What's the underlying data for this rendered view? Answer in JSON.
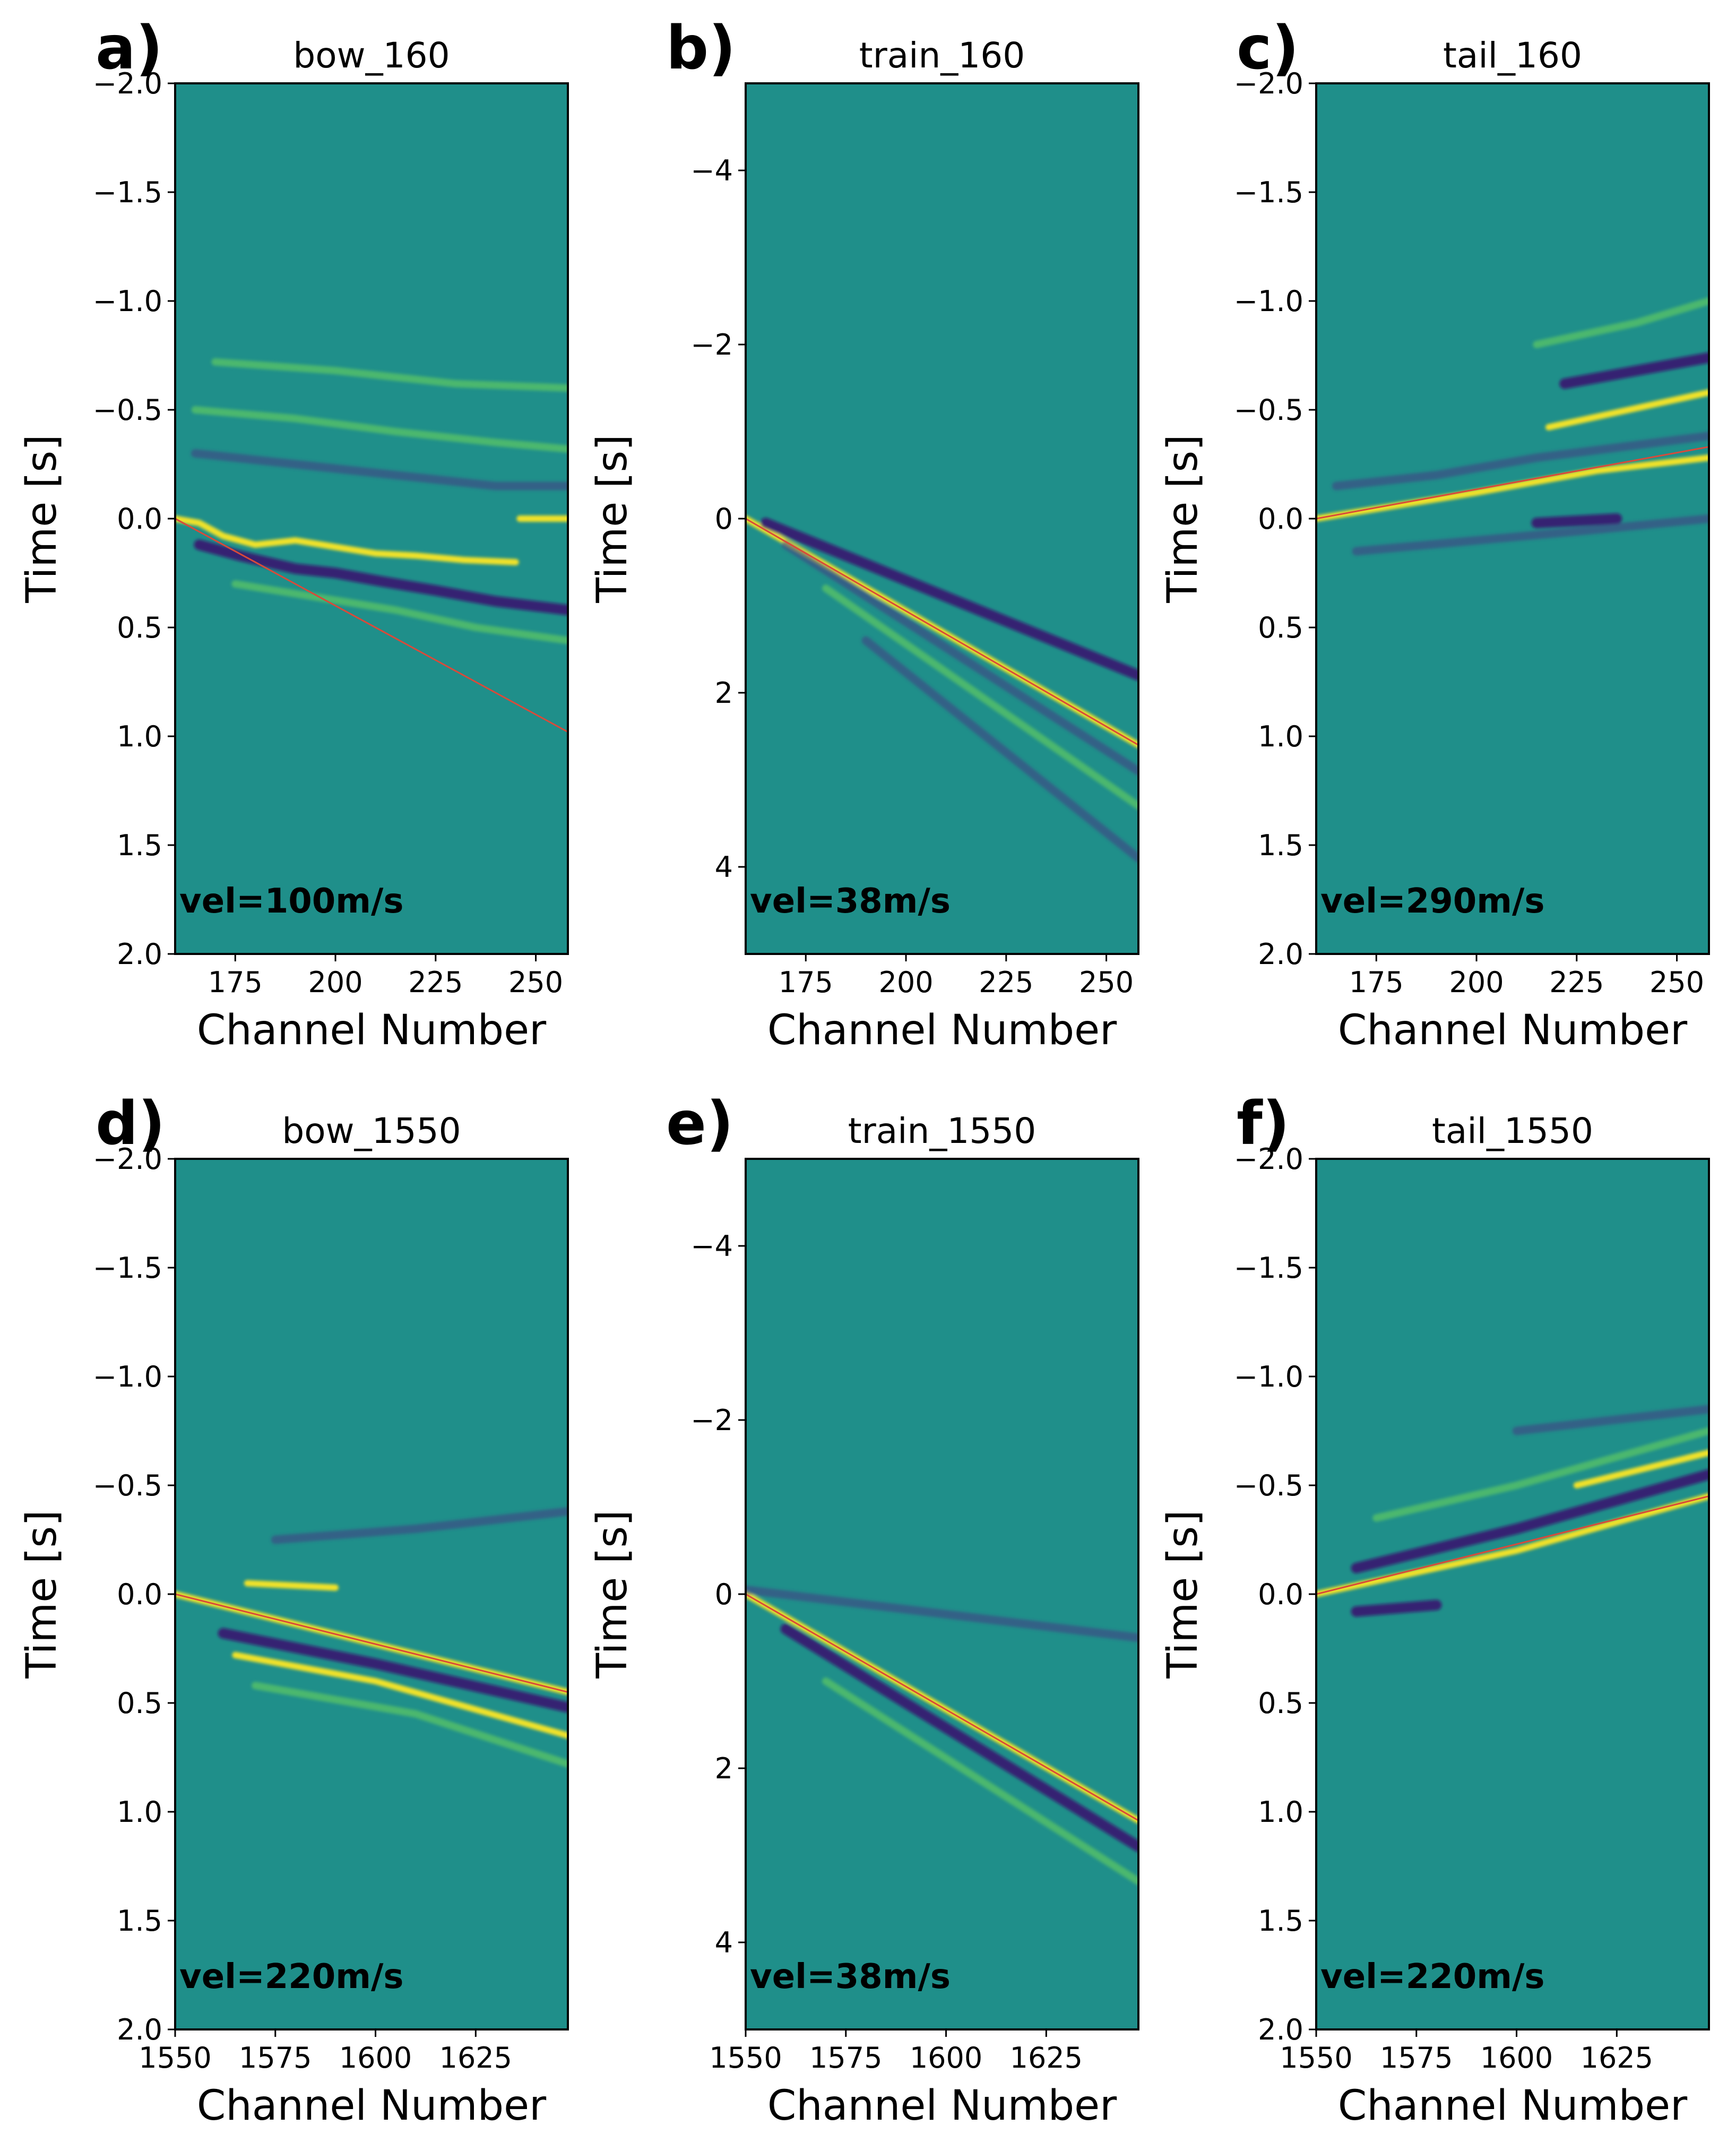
{
  "figure": {
    "background": "#ffffff"
  },
  "colors": {
    "base": "#1f8f8a",
    "bright": "#fde725",
    "mid": "#5ec962",
    "dark": "#3b0f6f",
    "dark2": "#443983",
    "fit_line": "#d94a3a",
    "axis": "#000000"
  },
  "chart_data": [
    {
      "id": "a",
      "panel_label": "a)",
      "title": "bow_160",
      "type": "heatmap",
      "xlabel": "Channel Number",
      "ylabel": "Time [s]",
      "xlim": [
        160,
        258
      ],
      "ylim": [
        2.0,
        -2.0
      ],
      "xticks": [
        175,
        200,
        225,
        250
      ],
      "xtick_labels": [
        "175",
        "200",
        "225",
        "250"
      ],
      "yticks": [
        -2.0,
        -1.5,
        -1.0,
        -0.5,
        0.0,
        0.5,
        1.0,
        1.5,
        2.0
      ],
      "ytick_labels": [
        "−2.0",
        "−1.5",
        "−1.0",
        "−0.5",
        "0.0",
        "0.5",
        "1.0",
        "1.5",
        "2.0"
      ],
      "annotation": "vel=100m/s",
      "fit_line": {
        "x": [
          160,
          258
        ],
        "y": [
          0.0,
          0.98
        ]
      },
      "features": [
        {
          "kind": "bright",
          "x": [
            160,
            166,
            172,
            180,
            190,
            200,
            210,
            220,
            232,
            245
          ],
          "y": [
            0.0,
            0.02,
            0.08,
            0.12,
            0.1,
            0.13,
            0.16,
            0.17,
            0.19,
            0.2
          ]
        },
        {
          "kind": "dark",
          "x": [
            166,
            176,
            190,
            200,
            212,
            225,
            240,
            258
          ],
          "y": [
            0.12,
            0.17,
            0.23,
            0.25,
            0.29,
            0.33,
            0.38,
            0.42
          ]
        },
        {
          "kind": "mid",
          "x": [
            175,
            195,
            215,
            235,
            258
          ],
          "y": [
            0.3,
            0.36,
            0.42,
            0.5,
            0.56
          ]
        },
        {
          "kind": "bright",
          "x": [
            246,
            258
          ],
          "y": [
            0.0,
            0.0
          ]
        },
        {
          "kind": "dark2",
          "x": [
            165,
            190,
            215,
            240,
            258
          ],
          "y": [
            -0.3,
            -0.25,
            -0.2,
            -0.15,
            -0.15
          ]
        },
        {
          "kind": "mid",
          "x": [
            165,
            190,
            215,
            240,
            258
          ],
          "y": [
            -0.5,
            -0.46,
            -0.4,
            -0.35,
            -0.32
          ]
        },
        {
          "kind": "mid",
          "x": [
            170,
            200,
            230,
            258
          ],
          "y": [
            -0.72,
            -0.68,
            -0.62,
            -0.6
          ]
        }
      ]
    },
    {
      "id": "b",
      "panel_label": "b)",
      "title": "train_160",
      "type": "heatmap",
      "xlabel": "Channel Number",
      "ylabel": "Time [s]",
      "xlim": [
        160,
        258
      ],
      "ylim": [
        5.0,
        -5.0
      ],
      "xticks": [
        175,
        200,
        225,
        250
      ],
      "xtick_labels": [
        "175",
        "200",
        "225",
        "250"
      ],
      "yticks": [
        -4,
        -2,
        0,
        2,
        4
      ],
      "ytick_labels": [
        "−4",
        "−2",
        "0",
        "2",
        "4"
      ],
      "annotation": "vel=38m/s",
      "fit_line": {
        "x": [
          160,
          258
        ],
        "y": [
          0.0,
          2.6
        ]
      },
      "features": [
        {
          "kind": "bright",
          "x": [
            160,
            258
          ],
          "y": [
            0.0,
            2.6
          ]
        },
        {
          "kind": "dark",
          "x": [
            165,
            258
          ],
          "y": [
            0.05,
            1.8
          ]
        },
        {
          "kind": "dark2",
          "x": [
            170,
            258
          ],
          "y": [
            0.3,
            2.9
          ]
        },
        {
          "kind": "mid",
          "x": [
            180,
            258
          ],
          "y": [
            0.8,
            3.3
          ]
        },
        {
          "kind": "dark2",
          "x": [
            190,
            258
          ],
          "y": [
            1.4,
            3.9
          ]
        }
      ]
    },
    {
      "id": "c",
      "panel_label": "c)",
      "title": "tail_160",
      "type": "heatmap",
      "xlabel": "Channel Number",
      "ylabel": "Time [s]",
      "xlim": [
        160,
        258
      ],
      "ylim": [
        2.0,
        -2.0
      ],
      "xticks": [
        175,
        200,
        225,
        250
      ],
      "xtick_labels": [
        "175",
        "200",
        "225",
        "250"
      ],
      "yticks": [
        -2.0,
        -1.5,
        -1.0,
        -0.5,
        0.0,
        0.5,
        1.0,
        1.5,
        2.0
      ],
      "ytick_labels": [
        "−2.0",
        "−1.5",
        "−1.0",
        "−0.5",
        "0.0",
        "0.5",
        "1.0",
        "1.5",
        "2.0"
      ],
      "annotation": "vel=290m/s",
      "fit_line": {
        "x": [
          160,
          258
        ],
        "y": [
          0.0,
          -0.33
        ]
      },
      "features": [
        {
          "kind": "bright",
          "x": [
            160,
            200,
            230,
            258
          ],
          "y": [
            0.0,
            -0.12,
            -0.22,
            -0.28
          ]
        },
        {
          "kind": "bright",
          "x": [
            218,
            238,
            258
          ],
          "y": [
            -0.42,
            -0.5,
            -0.58
          ]
        },
        {
          "kind": "dark",
          "x": [
            222,
            240,
            258
          ],
          "y": [
            -0.62,
            -0.68,
            -0.74
          ]
        },
        {
          "kind": "dark2",
          "x": [
            165,
            190,
            215,
            258
          ],
          "y": [
            -0.15,
            -0.2,
            -0.28,
            -0.38
          ]
        },
        {
          "kind": "dark",
          "x": [
            215,
            235
          ],
          "y": [
            0.02,
            0.0
          ]
        },
        {
          "kind": "mid",
          "x": [
            215,
            240,
            258
          ],
          "y": [
            -0.8,
            -0.9,
            -1.0
          ]
        },
        {
          "kind": "dark2",
          "x": [
            170,
            200,
            230,
            258
          ],
          "y": [
            0.15,
            0.1,
            0.05,
            0.0
          ]
        }
      ]
    },
    {
      "id": "d",
      "panel_label": "d)",
      "title": "bow_1550",
      "type": "heatmap",
      "xlabel": "Channel Number",
      "ylabel": "Time [s]",
      "xlim": [
        1550,
        1648
      ],
      "ylim": [
        2.0,
        -2.0
      ],
      "xticks": [
        1550,
        1575,
        1600,
        1625
      ],
      "xtick_labels": [
        "1550",
        "1575",
        "1600",
        "1625"
      ],
      "yticks": [
        -2.0,
        -1.5,
        -1.0,
        -0.5,
        0.0,
        0.5,
        1.0,
        1.5,
        2.0
      ],
      "ytick_labels": [
        "−2.0",
        "−1.5",
        "−1.0",
        "−0.5",
        "0.0",
        "0.5",
        "1.0",
        "1.5",
        "2.0"
      ],
      "annotation": "vel=220m/s",
      "fit_line": {
        "x": [
          1550,
          1648
        ],
        "y": [
          0.0,
          0.45
        ]
      },
      "features": [
        {
          "kind": "bright",
          "x": [
            1550,
            1648
          ],
          "y": [
            0.0,
            0.45
          ]
        },
        {
          "kind": "dark",
          "x": [
            1562,
            1600,
            1648
          ],
          "y": [
            0.18,
            0.32,
            0.52
          ]
        },
        {
          "kind": "bright",
          "x": [
            1565,
            1600,
            1648
          ],
          "y": [
            0.28,
            0.4,
            0.65
          ]
        },
        {
          "kind": "bright",
          "x": [
            1568,
            1590
          ],
          "y": [
            -0.05,
            -0.03
          ]
        },
        {
          "kind": "mid",
          "x": [
            1570,
            1610,
            1648
          ],
          "y": [
            0.42,
            0.55,
            0.78
          ]
        },
        {
          "kind": "dark2",
          "x": [
            1575,
            1610,
            1648
          ],
          "y": [
            -0.25,
            -0.3,
            -0.38
          ]
        }
      ]
    },
    {
      "id": "e",
      "panel_label": "e)",
      "title": "train_1550",
      "type": "heatmap",
      "xlabel": "Channel Number",
      "ylabel": "Time [s]",
      "xlim": [
        1550,
        1648
      ],
      "ylim": [
        5.0,
        -5.0
      ],
      "xticks": [
        1550,
        1575,
        1600,
        1625
      ],
      "xtick_labels": [
        "1550",
        "1575",
        "1600",
        "1625"
      ],
      "yticks": [
        -4,
        -2,
        0,
        2,
        4
      ],
      "ytick_labels": [
        "−4",
        "−2",
        "0",
        "2",
        "4"
      ],
      "annotation": "vel=38m/s",
      "fit_line": {
        "x": [
          1550,
          1648
        ],
        "y": [
          0.0,
          2.6
        ]
      },
      "features": [
        {
          "kind": "bright",
          "x": [
            1550,
            1648
          ],
          "y": [
            0.0,
            2.6
          ]
        },
        {
          "kind": "dark",
          "x": [
            1560,
            1648
          ],
          "y": [
            0.4,
            2.9
          ]
        },
        {
          "kind": "dark2",
          "x": [
            1550,
            1648
          ],
          "y": [
            -0.05,
            0.5
          ]
        },
        {
          "kind": "mid",
          "x": [
            1570,
            1648
          ],
          "y": [
            1.0,
            3.3
          ]
        }
      ]
    },
    {
      "id": "f",
      "panel_label": "f)",
      "title": "tail_1550",
      "type": "heatmap",
      "xlabel": "Channel Number",
      "ylabel": "Time [s]",
      "xlim": [
        1550,
        1648
      ],
      "ylim": [
        2.0,
        -2.0
      ],
      "xticks": [
        1550,
        1575,
        1600,
        1625
      ],
      "xtick_labels": [
        "1550",
        "1575",
        "1600",
        "1625"
      ],
      "yticks": [
        -2.0,
        -1.5,
        -1.0,
        -0.5,
        0.0,
        0.5,
        1.0,
        1.5,
        2.0
      ],
      "ytick_labels": [
        "−2.0",
        "−1.5",
        "−1.0",
        "−0.5",
        "0.0",
        "0.5",
        "1.0",
        "1.5",
        "2.0"
      ],
      "annotation": "vel=220m/s",
      "fit_line": {
        "x": [
          1550,
          1648
        ],
        "y": [
          0.0,
          -0.45
        ]
      },
      "features": [
        {
          "kind": "bright",
          "x": [
            1550,
            1600,
            1648
          ],
          "y": [
            0.0,
            -0.2,
            -0.45
          ]
        },
        {
          "kind": "dark",
          "x": [
            1560,
            1600,
            1648
          ],
          "y": [
            -0.12,
            -0.3,
            -0.55
          ]
        },
        {
          "kind": "bright",
          "x": [
            1615,
            1648
          ],
          "y": [
            -0.5,
            -0.65
          ]
        },
        {
          "kind": "dark",
          "x": [
            1560,
            1580
          ],
          "y": [
            0.08,
            0.05
          ]
        },
        {
          "kind": "mid",
          "x": [
            1565,
            1600,
            1648
          ],
          "y": [
            -0.35,
            -0.5,
            -0.75
          ]
        },
        {
          "kind": "dark2",
          "x": [
            1600,
            1648
          ],
          "y": [
            -0.75,
            -0.85
          ]
        }
      ]
    }
  ]
}
